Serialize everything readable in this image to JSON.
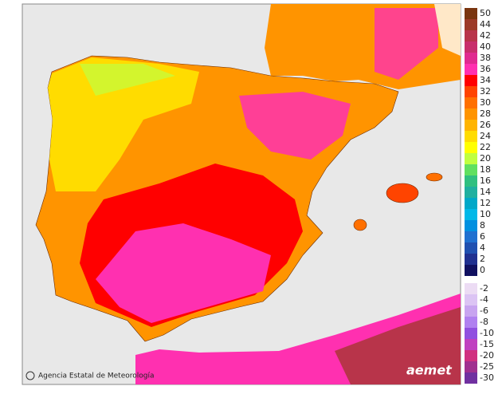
{
  "map": {
    "credit": "Agencia Estatal de Meteorología",
    "logo": "aemet",
    "legend": {
      "positive": [
        {
          "label": 50,
          "color": "#7a3510"
        },
        {
          "label": 44,
          "color": "#9c3a28"
        },
        {
          "label": 42,
          "color": "#b8344a"
        },
        {
          "label": 40,
          "color": "#c82e6c"
        },
        {
          "label": 38,
          "color": "#e02a90"
        },
        {
          "label": 36,
          "color": "#ff30b0"
        },
        {
          "label": 34,
          "color": "#ff0000"
        },
        {
          "label": 32,
          "color": "#ff4400"
        },
        {
          "label": 30,
          "color": "#ff7000"
        },
        {
          "label": 28,
          "color": "#ff9400"
        },
        {
          "label": 26,
          "color": "#ffb400"
        },
        {
          "label": 24,
          "color": "#ffdc00"
        },
        {
          "label": 22,
          "color": "#ffff00"
        },
        {
          "label": 20,
          "color": "#c0ff40"
        },
        {
          "label": 18,
          "color": "#60e060"
        },
        {
          "label": 16,
          "color": "#30c080"
        },
        {
          "label": 14,
          "color": "#20b0a0"
        },
        {
          "label": 12,
          "color": "#00a8c8"
        },
        {
          "label": 10,
          "color": "#00b8e8"
        },
        {
          "label": 8,
          "color": "#0090e0"
        },
        {
          "label": 6,
          "color": "#2070d0"
        },
        {
          "label": 4,
          "color": "#2050b0"
        },
        {
          "label": 2,
          "color": "#203090"
        },
        {
          "label": 0,
          "color": "#101060"
        }
      ],
      "negative": [
        {
          "label": -2,
          "color": "#ecdcf4"
        },
        {
          "label": -4,
          "color": "#dcc4f4"
        },
        {
          "label": -6,
          "color": "#c8a4f0"
        },
        {
          "label": -8,
          "color": "#b080f0"
        },
        {
          "label": -10,
          "color": "#9050e0"
        },
        {
          "label": -15,
          "color": "#c040c0"
        },
        {
          "label": -20,
          "color": "#d03080"
        },
        {
          "label": -25,
          "color": "#a03090"
        },
        {
          "label": -30,
          "color": "#7030a0"
        }
      ]
    }
  }
}
